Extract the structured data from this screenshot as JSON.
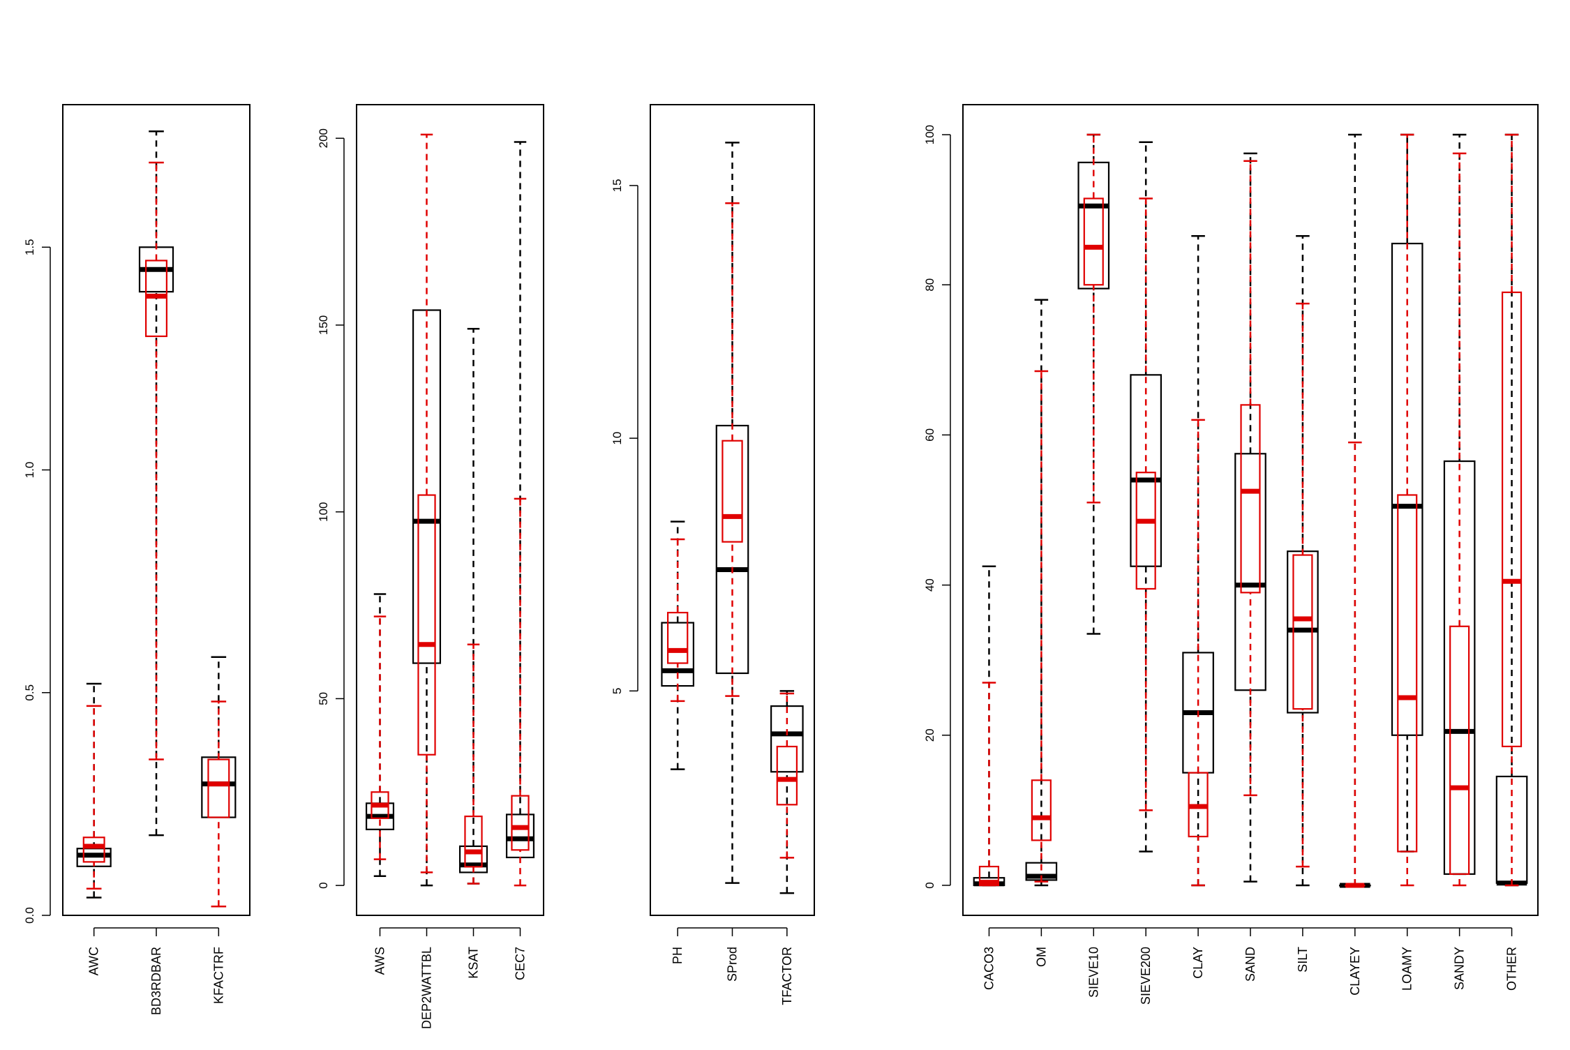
{
  "chart_data": [
    {
      "type": "boxplot",
      "title": "",
      "xlabel": "",
      "ylabel": "",
      "ylim": [
        0,
        1.82
      ],
      "yticks": [
        "0.0",
        "0.5",
        "1.0",
        "1.5"
      ],
      "categories": [
        "AWC",
        "BD3RDBAR",
        "KFACTRF"
      ],
      "series": [
        {
          "color": "#000000",
          "whisker_style": "dashed",
          "boxes": [
            {
              "min": 0.04,
              "q1": 0.11,
              "median": 0.135,
              "q3": 0.15,
              "max": 0.52
            },
            {
              "min": 0.18,
              "q1": 1.4,
              "median": 1.45,
              "q3": 1.5,
              "max": 1.76
            },
            {
              "min": null,
              "q1": 0.22,
              "median": 0.295,
              "q3": 0.355,
              "max": 0.58
            }
          ]
        },
        {
          "color": "#e00000",
          "whisker_style": "dashed",
          "boxes": [
            {
              "min": 0.06,
              "q1": 0.12,
              "median": 0.155,
              "q3": 0.175,
              "max": 0.47
            },
            {
              "min": 0.35,
              "q1": 1.3,
              "median": 1.39,
              "q3": 1.47,
              "max": 1.69
            },
            {
              "min": 0.02,
              "q1": 0.22,
              "median": 0.295,
              "q3": 0.35,
              "max": 0.48
            }
          ]
        }
      ]
    },
    {
      "type": "boxplot",
      "title": "",
      "xlabel": "",
      "ylabel": "",
      "ylim": [
        -8,
        209
      ],
      "yticks": [
        "0",
        "50",
        "100",
        "150",
        "200"
      ],
      "categories": [
        "AWS",
        "DEP2WATTBL",
        "KSAT",
        "CEC7"
      ],
      "series": [
        {
          "color": "#000000",
          "whisker_style": "dashed",
          "boxes": [
            {
              "min": 2.5,
              "q1": 15,
              "median": 18.5,
              "q3": 22,
              "max": 78
            },
            {
              "min": 0,
              "q1": 59.5,
              "median": 97.5,
              "q3": 154,
              "max": null
            },
            {
              "min": 0.5,
              "q1": 3.5,
              "median": 5.5,
              "q3": 10.5,
              "max": 149
            },
            {
              "min": null,
              "q1": 7.5,
              "median": 12.5,
              "q3": 19,
              "max": 199
            }
          ]
        },
        {
          "color": "#e00000",
          "whisker_style": "dashed",
          "boxes": [
            {
              "min": 7,
              "q1": 18,
              "median": 21.5,
              "q3": 25,
              "max": 72
            },
            {
              "min": 3.5,
              "q1": 35,
              "median": 64.5,
              "q3": 104.5,
              "max": 201
            },
            {
              "min": 0.5,
              "q1": 5,
              "median": 9,
              "q3": 18.5,
              "max": 64.5
            },
            {
              "min": 0,
              "q1": 9.5,
              "median": 15.5,
              "q3": 24,
              "max": 103.5
            }
          ]
        }
      ]
    },
    {
      "type": "boxplot",
      "title": "",
      "xlabel": "",
      "ylabel": "",
      "ylim": [
        0.56,
        16.6
      ],
      "yticks": [
        "5",
        "10",
        "15"
      ],
      "categories": [
        "PH",
        "SProd",
        "TFACTOR"
      ],
      "series": [
        {
          "color": "#000000",
          "whisker_style": "dashed",
          "boxes": [
            {
              "min": 3.45,
              "q1": 5.1,
              "median": 5.4,
              "q3": 6.35,
              "max": 8.35
            },
            {
              "min": 1.2,
              "q1": 5.35,
              "median": 7.4,
              "q3": 10.25,
              "max": 15.85
            },
            {
              "min": 1.0,
              "q1": 3.4,
              "median": 4.15,
              "q3": 4.7,
              "max": 5.0
            }
          ]
        },
        {
          "color": "#e00000",
          "whisker_style": "dashed",
          "boxes": [
            {
              "min": 4.8,
              "q1": 5.55,
              "median": 5.8,
              "q3": 6.55,
              "max": 8.0
            },
            {
              "min": 4.9,
              "q1": 7.95,
              "median": 8.45,
              "q3": 9.95,
              "max": 14.65
            },
            {
              "min": 1.7,
              "q1": 2.75,
              "median": 3.25,
              "q3": 3.9,
              "max": 4.95
            }
          ]
        }
      ]
    },
    {
      "type": "boxplot",
      "title": "",
      "xlabel": "",
      "ylabel": "",
      "ylim": [
        -4,
        104
      ],
      "yticks": [
        "0",
        "20",
        "40",
        "60",
        "80",
        "100"
      ],
      "categories": [
        "CACO3",
        "OM",
        "SIEVE10",
        "SIEVE200",
        "CLAY",
        "SAND",
        "SILT",
        "CLAYEY",
        "LOAMY",
        "SANDY",
        "OTHER"
      ],
      "series": [
        {
          "color": "#000000",
          "whisker_style": "dashed",
          "boxes": [
            {
              "min": 0,
              "q1": 0,
              "median": 0.2,
              "q3": 1,
              "max": 42.5
            },
            {
              "min": 0,
              "q1": 0.7,
              "median": 1.2,
              "q3": 3,
              "max": 78
            },
            {
              "min": 33.5,
              "q1": 79.5,
              "median": 90.5,
              "q3": 96.3,
              "max": 100
            },
            {
              "min": 4.5,
              "q1": 42.5,
              "median": 54,
              "q3": 68,
              "max": 99
            },
            {
              "min": 0,
              "q1": 15,
              "median": 23,
              "q3": 31,
              "max": 86.5
            },
            {
              "min": 0.5,
              "q1": 26,
              "median": 40,
              "q3": 57.5,
              "max": 97.5
            },
            {
              "min": 0,
              "q1": 23,
              "median": 34,
              "q3": 44.5,
              "max": 86.5
            },
            {
              "min": 0,
              "q1": 0,
              "median": 0,
              "q3": 0,
              "max": 100
            },
            {
              "min": 4.5,
              "q1": 20,
              "median": 50.5,
              "q3": 85.5,
              "max": 100
            },
            {
              "min": 1.5,
              "q1": 1.5,
              "median": 20.5,
              "q3": 56.5,
              "max": 100
            },
            {
              "min": 0,
              "q1": 0.3,
              "median": 0.3,
              "q3": 14.5,
              "max": 100
            }
          ]
        },
        {
          "color": "#e00000",
          "whisker_style": "dashed",
          "boxes": [
            {
              "min": 0,
              "q1": 0,
              "median": 0.4,
              "q3": 2.5,
              "max": 27
            },
            {
              "min": 0.5,
              "q1": 6,
              "median": 9,
              "q3": 14,
              "max": 68.5
            },
            {
              "min": 51,
              "q1": 80,
              "median": 85,
              "q3": 91.5,
              "max": 100
            },
            {
              "min": 10,
              "q1": 39.5,
              "median": 48.5,
              "q3": 55,
              "max": 91.5
            },
            {
              "min": 0,
              "q1": 6.5,
              "median": 10.5,
              "q3": 15,
              "max": 62
            },
            {
              "min": 12,
              "q1": 39,
              "median": 52.5,
              "q3": 64,
              "max": 96.5
            },
            {
              "min": 2.5,
              "q1": 23.5,
              "median": 35.5,
              "q3": 44,
              "max": 77.5
            },
            {
              "min": 0,
              "q1": 0,
              "median": 0,
              "q3": 0,
              "max": 59
            },
            {
              "min": 0,
              "q1": 4.5,
              "median": 25,
              "q3": 52,
              "max": 100
            },
            {
              "min": 0,
              "q1": 1.5,
              "median": 13,
              "q3": 34.5,
              "max": 97.5
            },
            {
              "min": 0,
              "q1": 18.5,
              "median": 40.5,
              "q3": 79,
              "max": 100
            }
          ]
        }
      ]
    }
  ]
}
